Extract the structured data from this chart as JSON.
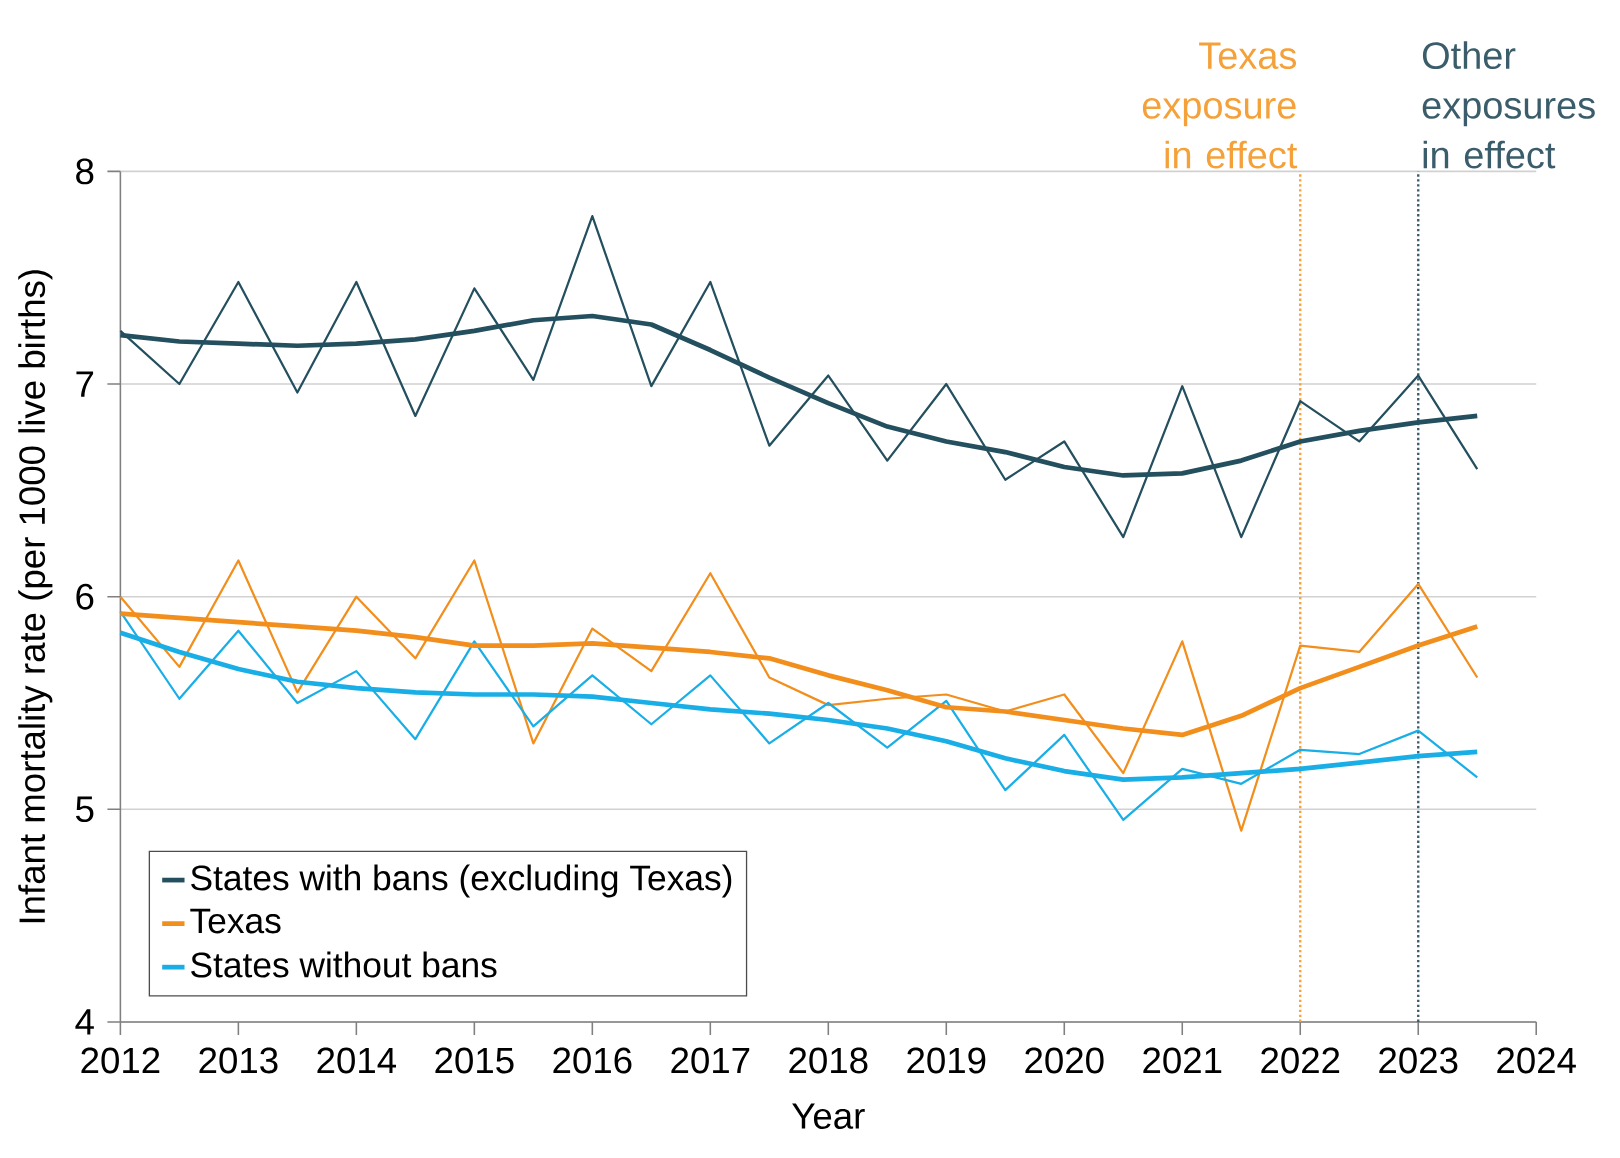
{
  "chart_data": {
    "type": "line",
    "xlabel": "Year",
    "ylabel": "Infant mortality rate (per 1000 live births)",
    "x": [
      2012,
      2012.5,
      2013,
      2013.5,
      2014,
      2014.5,
      2015,
      2015.5,
      2016,
      2016.5,
      2017,
      2017.5,
      2018,
      2018.5,
      2019,
      2019.5,
      2020,
      2020.5,
      2021,
      2021.5,
      2022,
      2022.5,
      2023,
      2023.5
    ],
    "series": [
      {
        "color": "#234f5e",
        "values": [
          7.25,
          7.0,
          7.48,
          6.96,
          7.48,
          6.85,
          7.45,
          7.02,
          7.79,
          6.99,
          7.48,
          6.71,
          7.04,
          6.64,
          7.0,
          6.55,
          6.73,
          6.28,
          6.99,
          6.28,
          6.92,
          6.73,
          7.04,
          6.6
        ]
      },
      {
        "color": "#f28e1c",
        "values": [
          6.0,
          5.67,
          6.17,
          5.55,
          6.0,
          5.71,
          6.17,
          5.31,
          5.85,
          5.65,
          6.11,
          5.62,
          5.49,
          5.52,
          5.54,
          5.46,
          5.54,
          5.17,
          5.79,
          4.9,
          5.77,
          5.74,
          6.06,
          5.62
        ]
      },
      {
        "color": "#19aee6",
        "values": [
          5.93,
          5.52,
          5.84,
          5.5,
          5.65,
          5.33,
          5.79,
          5.39,
          5.63,
          5.4,
          5.63,
          5.31,
          5.5,
          5.29,
          5.51,
          5.09,
          5.35,
          4.95,
          5.19,
          5.12,
          5.28,
          5.26,
          5.37,
          5.15
        ]
      },
      {
        "name": "States with bans (excluding Texas)",
        "color": "#234f5e",
        "values": [
          7.23,
          7.2,
          7.19,
          7.18,
          7.19,
          7.21,
          7.25,
          7.3,
          7.32,
          7.28,
          7.16,
          7.03,
          6.91,
          6.8,
          6.73,
          6.68,
          6.61,
          6.57,
          6.58,
          6.64,
          6.73,
          6.78,
          6.82,
          6.85
        ]
      },
      {
        "name": "Texas",
        "color": "#f28e1c",
        "values": [
          5.92,
          5.9,
          5.88,
          5.86,
          5.84,
          5.81,
          5.77,
          5.77,
          5.78,
          5.76,
          5.74,
          5.71,
          5.63,
          5.56,
          5.48,
          5.46,
          5.42,
          5.38,
          5.35,
          5.44,
          5.57,
          5.67,
          5.77,
          5.86
        ]
      },
      {
        "name": "States without bans",
        "color": "#19aee6",
        "values": [
          5.83,
          5.74,
          5.66,
          5.6,
          5.57,
          5.55,
          5.54,
          5.54,
          5.53,
          5.5,
          5.47,
          5.45,
          5.42,
          5.38,
          5.32,
          5.24,
          5.18,
          5.14,
          5.15,
          5.17,
          5.19,
          5.22,
          5.25,
          5.27
        ]
      }
    ],
    "xlim": [
      2012,
      2024
    ],
    "xticks": [
      2012,
      2013,
      2014,
      2015,
      2016,
      2017,
      2018,
      2019,
      2020,
      2021,
      2022,
      2023,
      2024
    ],
    "ylim": [
      4,
      8
    ],
    "yticks": [
      4,
      5,
      6,
      7,
      8
    ],
    "ref_lines": [
      {
        "axis": "x",
        "value": 2022,
        "label": "Texas exposure in effect",
        "color": "#f5a13a",
        "line_style": "dotted"
      },
      {
        "axis": "x",
        "value": 2023,
        "label": "Other exposures in effect",
        "color": "#3b5d6b",
        "line_style": "dotted"
      }
    ],
    "grid": "y",
    "legend": "bottom left",
    "marker": "none"
  }
}
